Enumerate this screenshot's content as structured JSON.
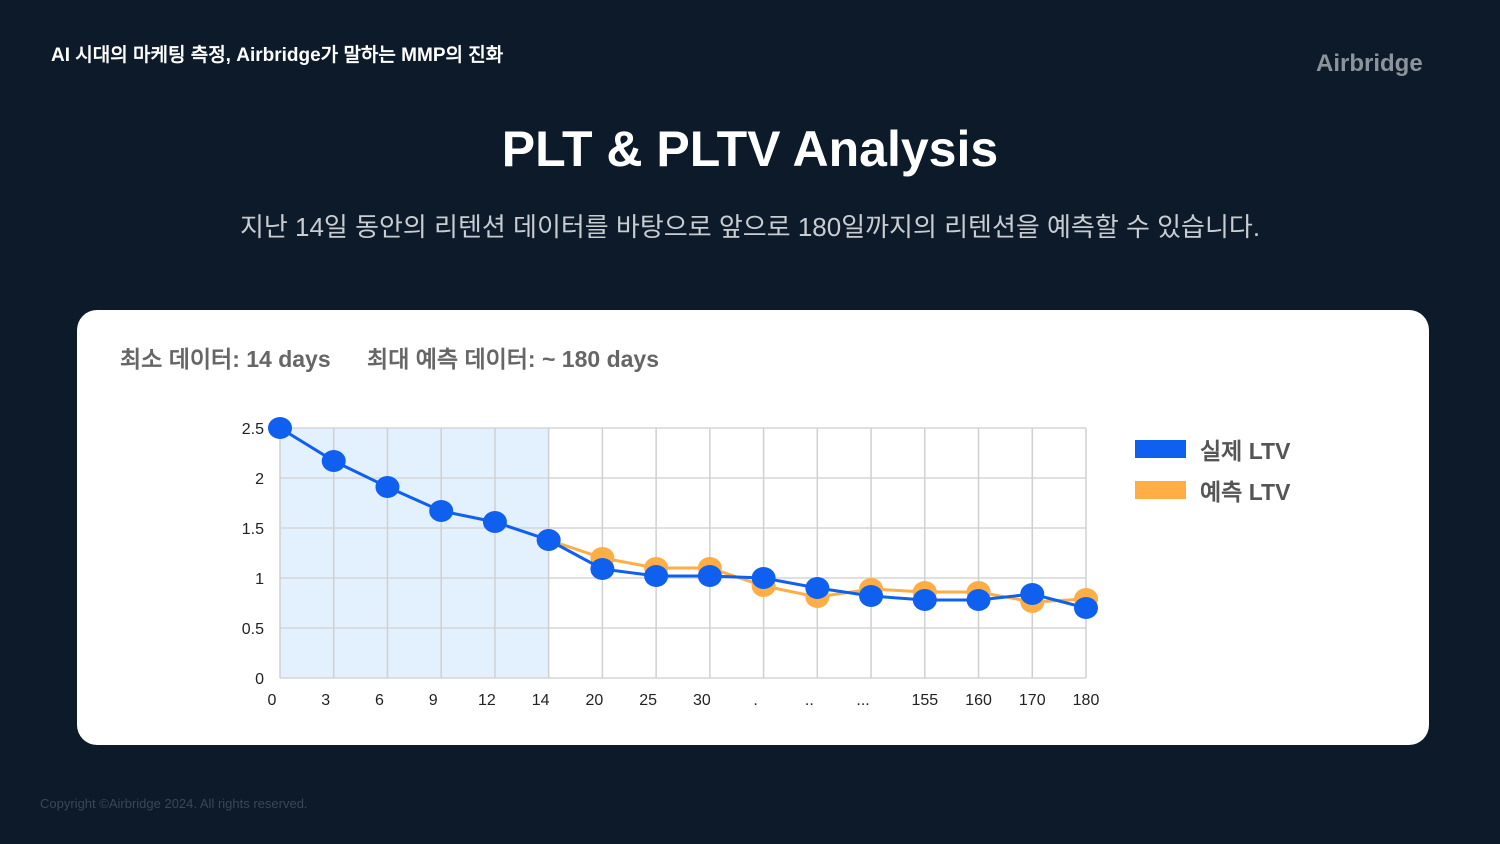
{
  "header": {
    "title": "AI 시대의 마케팅 측정, Airbridge가 말하는 MMP의 진화",
    "logo": "Airbridge"
  },
  "main": {
    "title": "PLT & PLTV Analysis",
    "subtitle": "지난 14일 동안의 리텐션 데이터를 바탕으로 앞으로 180일까지의 리텐션을 예측할 수 있습니다."
  },
  "card": {
    "min_data": "최소 데이터: 14 days",
    "max_data": "최대 예측 데이터: ~ 180 days"
  },
  "footer": {
    "copyright": "Copyright ©Airbridge 2024. All rights reserved."
  },
  "chart_data": {
    "type": "line",
    "categories": [
      "0",
      "3",
      "6",
      "9",
      "12",
      "14",
      "20",
      "25",
      "30",
      ".",
      "..",
      "...",
      "155",
      "160",
      "170",
      "180"
    ],
    "ylim": [
      0,
      2.5
    ],
    "yticks": [
      "0",
      "0.5",
      "1",
      "1.5",
      "2",
      "2.5"
    ],
    "shaded_region": [
      "0",
      "14"
    ],
    "grid": true,
    "legend_position": "right",
    "series": [
      {
        "name": "실제 LTV",
        "color": "#1060f0",
        "values": [
          2.5,
          2.17,
          1.91,
          1.67,
          1.56,
          1.38,
          1.09,
          1.02,
          1.02,
          1.0,
          0.9,
          0.82,
          0.78,
          0.78,
          0.84,
          0.7
        ]
      },
      {
        "name": "예측 LTV",
        "color": "#ffad45",
        "values": [
          null,
          null,
          null,
          null,
          null,
          1.38,
          1.2,
          1.1,
          1.1,
          0.92,
          0.81,
          0.89,
          0.86,
          0.86,
          0.76,
          0.79
        ]
      }
    ]
  }
}
